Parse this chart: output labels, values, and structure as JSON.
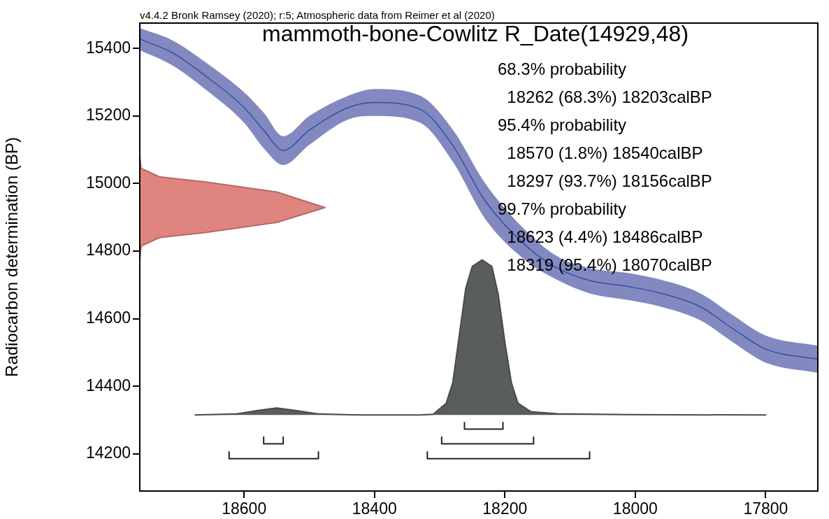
{
  "chart_data": {
    "type": "line",
    "title": "mammoth-bone-Cowlitz R_Date(14929,48)",
    "ylabel": "Radiocarbon determination (BP)",
    "xlim": [
      18760,
      17720
    ],
    "xticks": [
      18600,
      18400,
      18200,
      18000,
      17800
    ],
    "ylim": [
      14090,
      15475
    ],
    "yticks": [
      14200,
      14400,
      14600,
      14800,
      15000,
      15200,
      15400
    ],
    "annotations": [
      "v4.4.2 Bronk Ramsey (2020); r:5; Atmospheric data from Reimer et al (2020)",
      "68.3% probability",
      "  18262 (68.3%) 18203calBP",
      "95.4% probability",
      "  18570 (1.8%) 18540calBP",
      "  18297 (93.7%) 18156calBP",
      "99.7% probability",
      "  18623 (4.4%) 18486calBP",
      "  18319 (95.4%) 18070calBP"
    ],
    "series": [
      {
        "color": "#3e4a9e",
        "x": [
          18760,
          18710,
          18660,
          18600,
          18570,
          18540,
          18500,
          18440,
          18400,
          18330,
          18280,
          18230,
          18170,
          18120,
          18070,
          18010,
          17960,
          17900,
          17850,
          17800,
          17720
        ],
        "values": [
          15428,
          15387,
          15320,
          15225,
          15158,
          15098,
          15158,
          15225,
          15240,
          15220,
          15113,
          14948,
          14820,
          14750,
          14713,
          14695,
          14675,
          14635,
          14570,
          14510,
          14480
        ],
        "lower": [
          15395,
          15350,
          15280,
          15180,
          15105,
          15055,
          15115,
          15190,
          15200,
          15180,
          15065,
          14895,
          14775,
          14715,
          14675,
          14655,
          14635,
          14595,
          14530,
          14470,
          14440
        ],
        "upper": [
          15460,
          15424,
          15360,
          15270,
          15210,
          15140,
          15200,
          15260,
          15280,
          15260,
          15160,
          15000,
          14865,
          14785,
          14750,
          14735,
          14715,
          14675,
          14610,
          14550,
          14520
        ]
      },
      {
        "type": "area",
        "color": "#e08480",
        "x": [
          18760,
          18758,
          18730,
          18660,
          18550,
          18476,
          18550,
          18660,
          18730,
          18758,
          18760
        ],
        "values": [
          15080,
          15045,
          15020,
          15005,
          14975,
          14929,
          14885,
          14855,
          14840,
          14815,
          14775
        ]
      },
      {
        "type": "area",
        "color": "#5a5e5a",
        "x": [
          18675,
          18613,
          18580,
          18550,
          18520,
          18485,
          18420,
          18330,
          18310,
          18290,
          18280,
          18270,
          18260,
          18250,
          18235,
          18220,
          18210,
          18200,
          18190,
          18180,
          18160,
          18120,
          18010,
          17800
        ],
        "values": [
          14315,
          14318,
          14328,
          14336,
          14328,
          14318,
          14315,
          14315,
          14317,
          14350,
          14410,
          14550,
          14690,
          14755,
          14774,
          14755,
          14670,
          14530,
          14410,
          14350,
          14325,
          14319,
          14316,
          14315
        ]
      },
      {
        "color": "#222222",
        "x": [
          18262,
          18262,
          18203,
          18203
        ],
        "values": [
          14293,
          14273,
          14273,
          14293
        ]
      },
      {
        "color": "#222222",
        "x": [
          18570,
          18570,
          18540,
          18540
        ],
        "values": [
          14250,
          14230,
          14230,
          14250
        ]
      },
      {
        "color": "#222222",
        "x": [
          18297,
          18297,
          18156,
          18156
        ],
        "values": [
          14250,
          14230,
          14230,
          14250
        ]
      },
      {
        "color": "#222222",
        "x": [
          18623,
          18623,
          18486,
          18486
        ],
        "values": [
          14206,
          14186,
          14186,
          14206
        ]
      },
      {
        "color": "#222222",
        "x": [
          18319,
          18319,
          18070,
          18070
        ],
        "values": [
          14206,
          14186,
          14186,
          14206
        ]
      }
    ]
  }
}
